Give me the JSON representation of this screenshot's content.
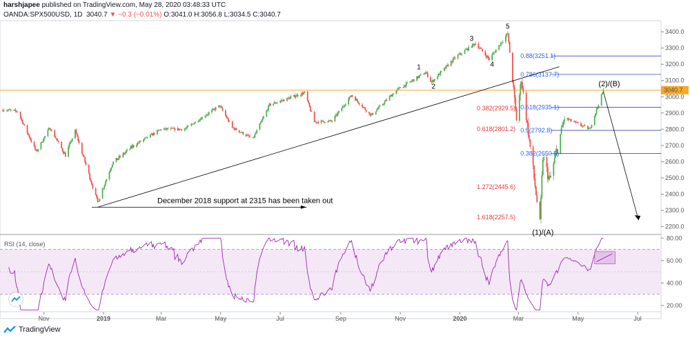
{
  "header": {
    "user": "harshjapee",
    "published": " published on TradingView.com, May 28, 2020 03:48:33 UTC",
    "symbol": "OANDA:SPX500USD, 1D",
    "last": "3040.7",
    "change": "▼ −0.3 (−0.01%)",
    "ohlc": "O:3041.0 H:3056.8 L:3034.5 C:3040.7"
  },
  "colors": {
    "up": "#26a69a",
    "up_bright": "#4caf50",
    "down": "#ef5350",
    "fib_blue": "#2962ff",
    "fib_red": "#e53935",
    "price_line": "#f9a825",
    "rsi_line": "#9c27b0",
    "rsi_band": "#f3e5f5"
  },
  "chart_data": [
    {
      "type": "candlestick",
      "title": "",
      "price_axis": {
        "ticks": [
          "3400.0",
          "3300.0",
          "3200.0",
          "3100.0",
          "3000.0",
          "2900.0",
          "2800.0",
          "2700.0",
          "2600.0",
          "2500.0",
          "2400.0",
          "2300.0",
          "2200.0"
        ],
        "ylim": [
          2160,
          3460
        ],
        "current_price": 3040.7
      },
      "time_axis": {
        "ticks": [
          "Nov",
          "2019",
          "Mar",
          "May",
          "Jul",
          "Sep",
          "Nov",
          "2020",
          "Mar",
          "May",
          "Jul"
        ]
      },
      "path": [
        [
          "2018-09-20",
          2920
        ],
        [
          "2018-10-05",
          2910
        ],
        [
          "2018-10-24",
          2660
        ],
        [
          "2018-11-07",
          2810
        ],
        [
          "2018-11-23",
          2640
        ],
        [
          "2018-12-03",
          2790
        ],
        [
          "2018-12-26",
          2350
        ],
        [
          "2019-01-10",
          2590
        ],
        [
          "2019-02-01",
          2700
        ],
        [
          "2019-03-01",
          2800
        ],
        [
          "2019-03-25",
          2800
        ],
        [
          "2019-04-30",
          2945
        ],
        [
          "2019-05-13",
          2810
        ],
        [
          "2019-06-03",
          2740
        ],
        [
          "2019-06-20",
          2950
        ],
        [
          "2019-07-26",
          3025
        ],
        [
          "2019-08-05",
          2845
        ],
        [
          "2019-08-23",
          2850
        ],
        [
          "2019-09-12",
          3010
        ],
        [
          "2019-10-02",
          2885
        ],
        [
          "2019-10-28",
          3040
        ],
        [
          "2019-11-27",
          3150
        ],
        [
          "2019-12-03",
          3090
        ],
        [
          "2019-12-27",
          3240
        ],
        [
          "2020-01-17",
          3330
        ],
        [
          "2020-01-31",
          3230
        ],
        [
          "2020-02-19",
          3390
        ],
        [
          "2020-02-28",
          2860
        ],
        [
          "2020-03-04",
          3110
        ],
        [
          "2020-03-23",
          2215
        ],
        [
          "2020-03-26",
          2630
        ],
        [
          "2020-04-02",
          2480
        ],
        [
          "2020-04-17",
          2870
        ],
        [
          "2020-05-13",
          2800
        ],
        [
          "2020-05-27",
          3040
        ]
      ],
      "fib_levels": [
        {
          "label": "0.88(3251.1)",
          "value": 3251.1,
          "color": "blue"
        },
        {
          "label": "0.786(3137.7)",
          "value": 3137.7,
          "color": "blue"
        },
        {
          "label": "0.618(2935.1)",
          "value": 2935.1,
          "color": "blue"
        },
        {
          "label": "0.5(2792.8)",
          "value": 2792.8,
          "color": "blue"
        },
        {
          "label": "0.382(2650.5)",
          "value": 2650.5,
          "color": "blue"
        },
        {
          "label": "0.382(2929.5)",
          "value": 2929.5,
          "color": "red"
        },
        {
          "label": "0.618(2801.2)",
          "value": 2801.2,
          "color": "red"
        },
        {
          "label": "1.272(2445.6)",
          "value": 2445.6,
          "color": "red"
        },
        {
          "label": "1.618(2257.5)",
          "value": 2257.5,
          "color": "red"
        }
      ],
      "wave_labels": [
        "1",
        "2",
        "3",
        "4",
        "5",
        "(2)/(B)",
        "(1)/(A)"
      ],
      "annotation": "December 2018 support at 2315 has been taken out"
    },
    {
      "type": "line",
      "title": "RSI (14, close)",
      "ylim": [
        15,
        82
      ],
      "ticks": [
        "80.00",
        "60.00",
        "40.00",
        "20.00"
      ],
      "band": [
        30,
        70
      ],
      "midline": 50
    }
  ]
}
